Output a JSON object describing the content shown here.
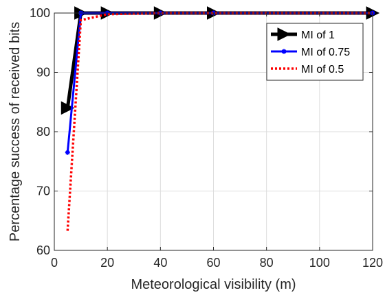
{
  "chart_data": {
    "type": "line",
    "title": "",
    "xlabel": "Meteorological visibility (m)",
    "ylabel": "Percentage success of received bits",
    "xlim": [
      0,
      120
    ],
    "ylim": [
      60,
      100
    ],
    "xticks": [
      0,
      20,
      40,
      60,
      80,
      100,
      120
    ],
    "yticks": [
      60,
      70,
      80,
      90,
      100
    ],
    "grid": true,
    "legend_position": "top-right",
    "series": [
      {
        "name": "MI of 1",
        "color": "#000000",
        "style": "solid",
        "marker": "triangle-right",
        "x": [
          5,
          10,
          20,
          40,
          60,
          120
        ],
        "y": [
          84,
          100,
          100,
          100,
          100,
          100
        ]
      },
      {
        "name": "MI of 0.75",
        "color": "#0000ff",
        "style": "solid",
        "marker": "star",
        "x": [
          5,
          10,
          20,
          40,
          60,
          120
        ],
        "y": [
          76.5,
          100,
          100,
          100,
          100,
          100
        ]
      },
      {
        "name": "MI of 0.5",
        "color": "#ff0000",
        "style": "dotted",
        "marker": "none",
        "x": [
          5,
          10,
          20,
          40,
          60,
          120
        ],
        "y": [
          63.3,
          98.8,
          99.8,
          100,
          100,
          100
        ]
      }
    ]
  }
}
